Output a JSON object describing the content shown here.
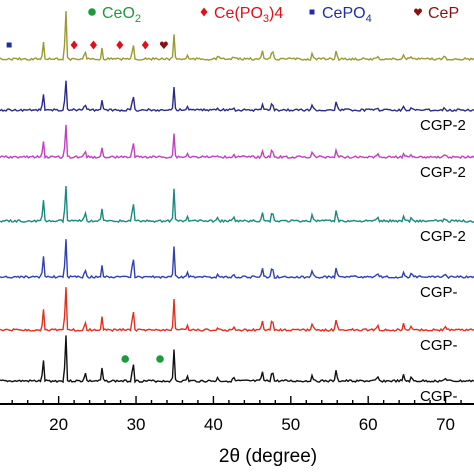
{
  "chart_data": {
    "type": "line",
    "xlabel": "2θ (degree)",
    "xlim": [
      11,
      76
    ],
    "x_ticks": [
      20,
      30,
      40,
      50,
      60,
      70
    ],
    "x_tick_labels": [
      "20",
      "30",
      "40",
      "50",
      "60",
      "70"
    ],
    "grid": false,
    "legend": {
      "placement": "top",
      "items": [
        {
          "marker": "circle",
          "color": "#1e9a3c",
          "label_main": "CeO",
          "label_sub": "2",
          "label_tail": ""
        },
        {
          "marker": "diamond",
          "color": "#e0101a",
          "label_main": "Ce(PO",
          "label_sub": "3",
          "label_tail": ")4"
        },
        {
          "marker": "square",
          "color": "#1f2fa0",
          "label_main": "CePO",
          "label_sub": "4",
          "label_tail": ""
        },
        {
          "marker": "heart",
          "color": "#8a1010",
          "label_main": "CeP",
          "label_sub": "",
          "label_tail": ""
        }
      ]
    },
    "series": [
      {
        "label": "",
        "color": "#9a9a30",
        "peak_scale": 0.6,
        "baseline": 59
      },
      {
        "label": "CGP-2",
        "color": "#2a2a8a",
        "peak_scale": 0.55,
        "baseline": 110
      },
      {
        "label": "CGP-2",
        "color": "#c040c0",
        "peak_scale": 0.55,
        "baseline": 157
      },
      {
        "label": "CGP-2",
        "color": "#1a8a80",
        "peak_scale": 0.75,
        "baseline": 221
      },
      {
        "label": "CGP-",
        "color": "#3040b0",
        "peak_scale": 0.75,
        "baseline": 277
      },
      {
        "label": "CGP-",
        "color": "#e03020",
        "peak_scale": 0.75,
        "baseline": 330
      },
      {
        "label": "CGP-",
        "color": "#111111",
        "peak_scale": 0.75,
        "baseline": 381
      }
    ],
    "peaks_2theta": [
      18.0,
      20.9,
      23.4,
      25.6,
      29.6,
      34.9,
      36.6,
      40.6,
      42.6,
      46.3,
      47.6,
      52.8,
      55.9,
      61.2,
      64.6,
      65.6,
      69.9
    ],
    "peak_relative_intensity": [
      0.55,
      1.0,
      0.25,
      0.3,
      0.6,
      0.75,
      0.12,
      0.1,
      0.1,
      0.25,
      0.35,
      0.2,
      0.3,
      0.12,
      0.15,
      0.1,
      0.1
    ],
    "annotations": [
      {
        "series_index": 0,
        "marker": "heart",
        "color": "#8a1010",
        "x": 11.8
      },
      {
        "series_index": 0,
        "marker": "square",
        "color": "#1f2fa0",
        "x": 13.6
      },
      {
        "series_index": 0,
        "marker": "diamond",
        "color": "#e0101a",
        "x": 22.0
      },
      {
        "series_index": 0,
        "marker": "diamond",
        "color": "#e0101a",
        "x": 24.5
      },
      {
        "series_index": 0,
        "marker": "diamond",
        "color": "#e0101a",
        "x": 27.9
      },
      {
        "series_index": 0,
        "marker": "diamond",
        "color": "#e0101a",
        "x": 31.2
      },
      {
        "series_index": 0,
        "marker": "heart",
        "color": "#8a1010",
        "x": 33.6
      },
      {
        "series_index": 6,
        "marker": "circle",
        "color": "#1e9a3c",
        "x": 28.6
      },
      {
        "series_index": 6,
        "marker": "circle",
        "color": "#1e9a3c",
        "x": 33.1
      }
    ]
  }
}
